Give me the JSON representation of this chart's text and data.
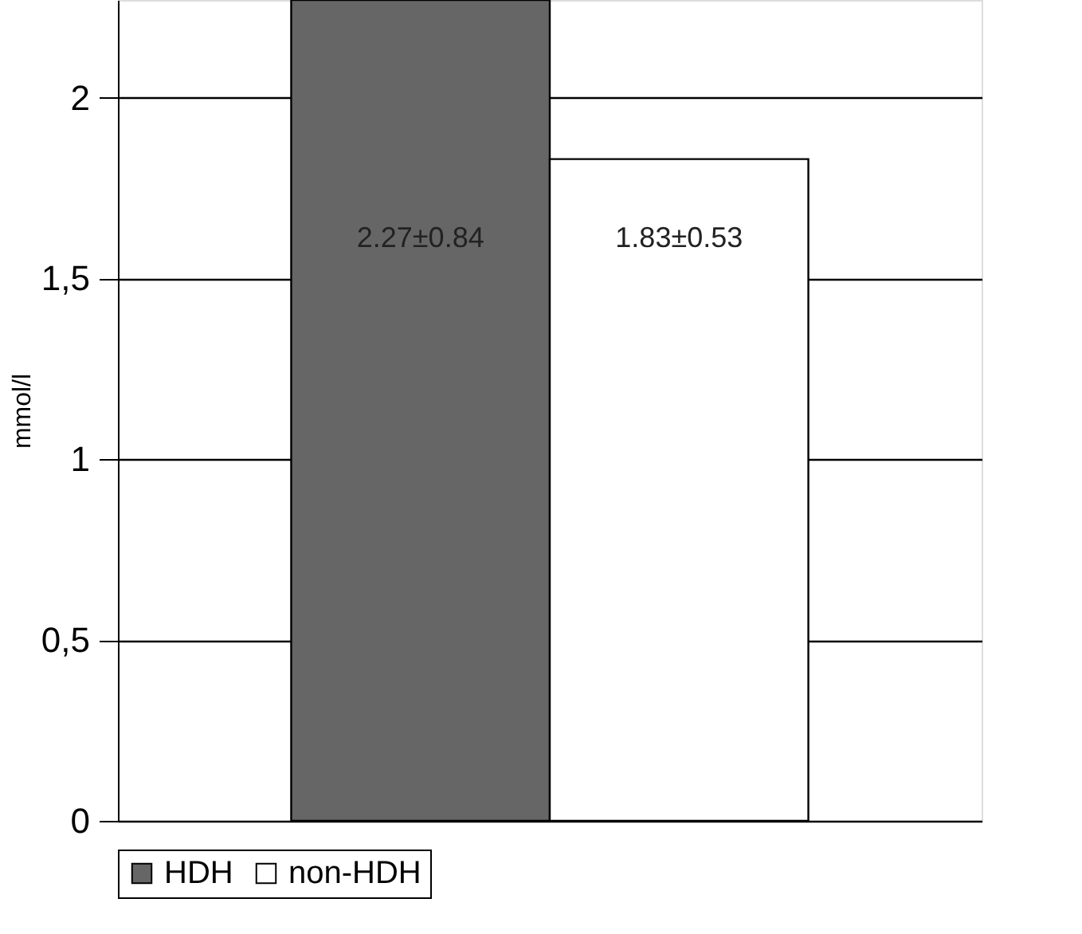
{
  "chart_data": {
    "type": "bar",
    "categories": [
      null
    ],
    "ylabel": "mmol/l",
    "series": [
      {
        "name": "HDH",
        "color": "#666666",
        "values": [
          2.27
        ],
        "value_labels": [
          "2.27±0.84"
        ]
      },
      {
        "name": "non-HDH",
        "color": "#ffffff",
        "values": [
          1.83
        ],
        "value_labels": [
          "1.83±0.53"
        ]
      }
    ],
    "ylim": [
      0,
      2.27
    ],
    "yticks": [
      0,
      {
        "value": 0.5,
        "label": "0,5"
      },
      1,
      {
        "value": 1.5,
        "label": "1,5"
      },
      2
    ],
    "grid": "y",
    "legend": "bottom"
  }
}
